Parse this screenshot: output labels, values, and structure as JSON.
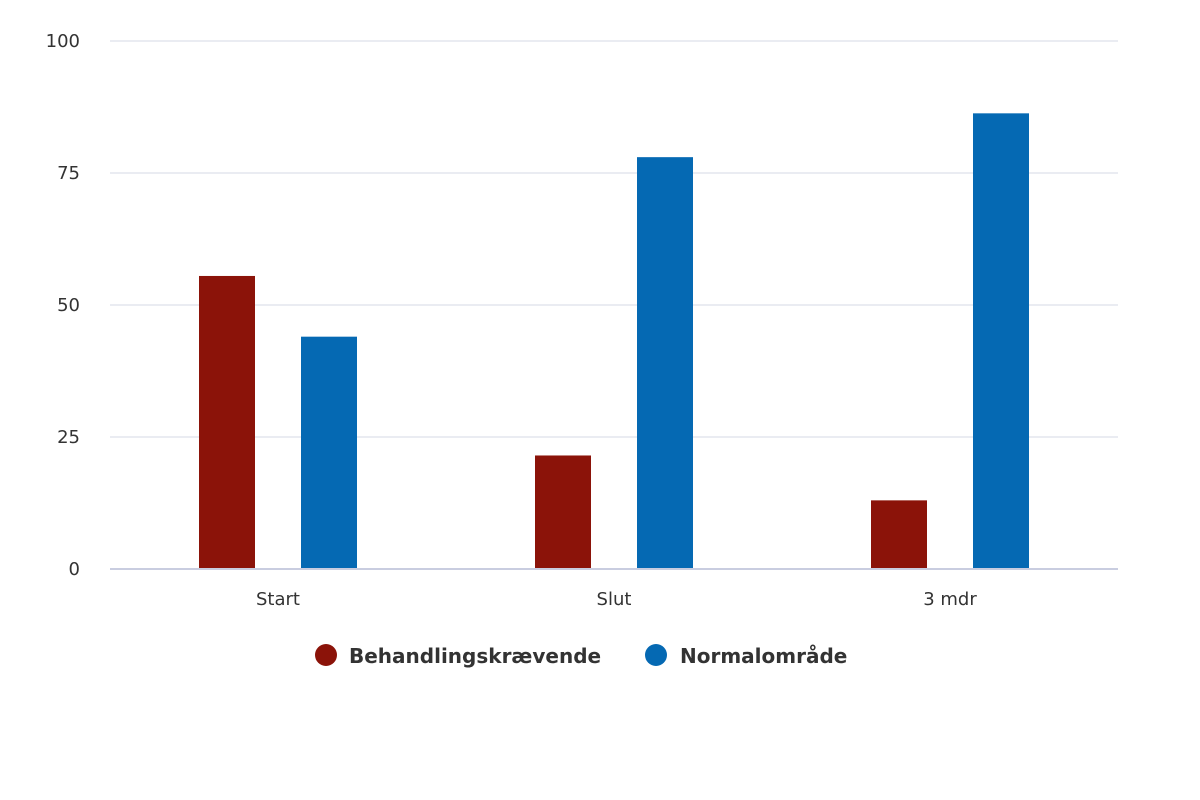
{
  "chart_data": {
    "type": "bar",
    "categories": [
      "Start",
      "Slut",
      "3 mdr"
    ],
    "series": [
      {
        "name": "Behandlingskrævende",
        "values": [
          55.5,
          21.5,
          13
        ],
        "color": "#8b1309"
      },
      {
        "name": "Normalområde",
        "values": [
          44,
          78,
          86.3
        ],
        "color": "#0569b3"
      }
    ],
    "yticks": [
      0,
      25,
      50,
      75,
      100
    ],
    "ylim": [
      0,
      100
    ],
    "grid": true,
    "legend_position": "bottom-center"
  }
}
